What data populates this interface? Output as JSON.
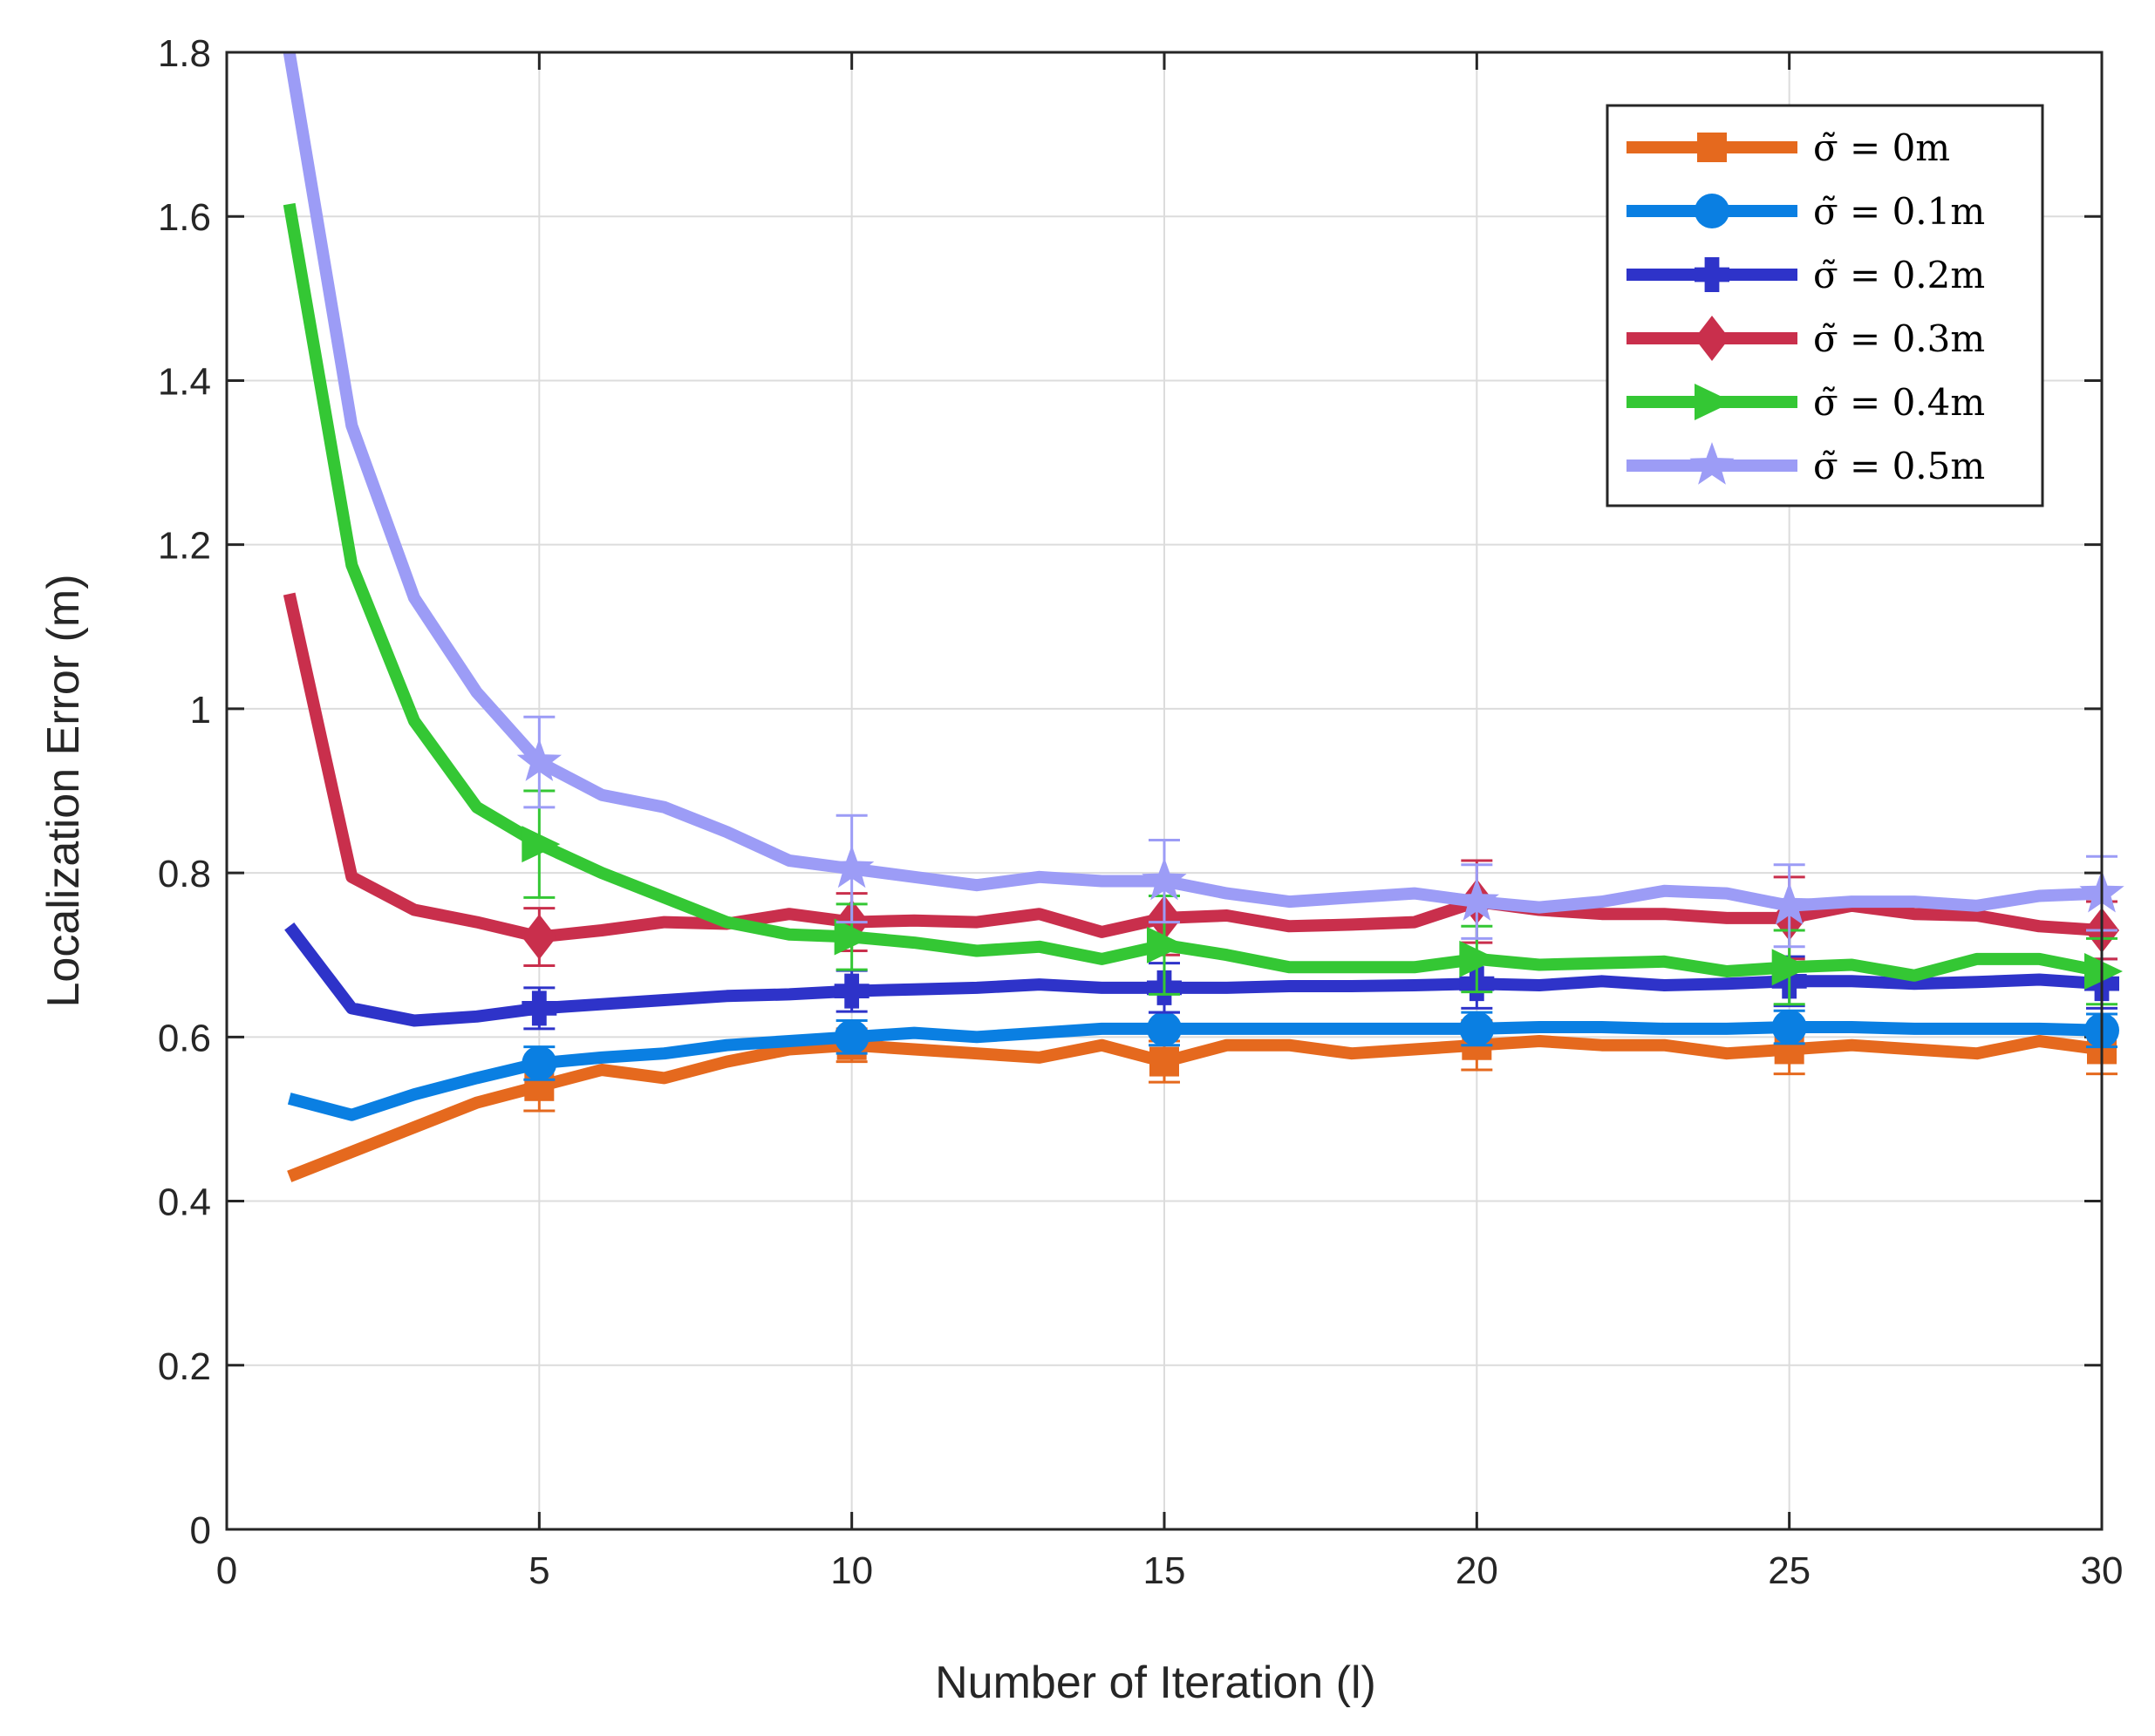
{
  "chart_data": {
    "type": "line",
    "title": "",
    "xlabel": "Number of Iteration (l)",
    "ylabel": "Localization Error (m)",
    "xlim": [
      0,
      30
    ],
    "ylim": [
      0,
      1.8
    ],
    "xticks": [
      "0",
      "5",
      "10",
      "15",
      "20",
      "25",
      "30"
    ],
    "yticks": [
      "0",
      "0.2",
      "0.4",
      "0.6",
      "0.8",
      "1",
      "1.2",
      "1.4",
      "1.6",
      "1.8"
    ],
    "grid": true,
    "legend_position": "top-right",
    "marker_iterations": [
      5,
      10,
      15,
      20,
      25,
      30
    ],
    "x": [
      1,
      2,
      3,
      4,
      5,
      6,
      7,
      8,
      9,
      10,
      11,
      12,
      13,
      14,
      15,
      16,
      17,
      18,
      19,
      20,
      21,
      22,
      23,
      24,
      25,
      26,
      27,
      28,
      29,
      30
    ],
    "series": [
      {
        "name": "σ̃ = 0m",
        "color": "#e5691e",
        "marker": "square",
        "values": [
          0.43,
          0.46,
          0.49,
          0.52,
          0.54,
          0.56,
          0.55,
          0.57,
          0.585,
          0.59,
          0.585,
          0.58,
          0.575,
          0.59,
          0.57,
          0.59,
          0.59,
          0.58,
          0.585,
          0.59,
          0.595,
          0.59,
          0.59,
          0.58,
          0.585,
          0.59,
          0.585,
          0.58,
          0.595,
          0.585
        ],
        "errors": [
          0.03,
          0.02,
          0.025,
          0.03,
          0.03,
          0.03
        ]
      },
      {
        "name": "σ̃ = 0.1m",
        "color": "#0a7fe2",
        "marker": "circle",
        "values": [
          0.525,
          0.505,
          0.53,
          0.55,
          0.568,
          0.575,
          0.58,
          0.59,
          0.595,
          0.6,
          0.605,
          0.6,
          0.605,
          0.61,
          0.61,
          0.61,
          0.61,
          0.61,
          0.61,
          0.61,
          0.612,
          0.612,
          0.61,
          0.61,
          0.612,
          0.612,
          0.61,
          0.61,
          0.61,
          0.608
        ],
        "errors": [
          0.02,
          0.02,
          0.02,
          0.02,
          0.02,
          0.02
        ]
      },
      {
        "name": "σ̃ = 0.2m",
        "color": "#2e33c9",
        "marker": "plus",
        "values": [
          0.735,
          0.635,
          0.62,
          0.625,
          0.635,
          0.64,
          0.645,
          0.65,
          0.652,
          0.656,
          0.658,
          0.66,
          0.664,
          0.66,
          0.66,
          0.66,
          0.662,
          0.662,
          0.663,
          0.665,
          0.663,
          0.668,
          0.663,
          0.665,
          0.668,
          0.668,
          0.665,
          0.667,
          0.67,
          0.665
        ],
        "errors": [
          0.025,
          0.025,
          0.03,
          0.03,
          0.03,
          0.03
        ]
      },
      {
        "name": "σ̃ = 0.3m",
        "color": "#c92f4c",
        "marker": "diamond",
        "values": [
          1.14,
          0.795,
          0.755,
          0.74,
          0.722,
          0.73,
          0.74,
          0.738,
          0.75,
          0.74,
          0.742,
          0.74,
          0.75,
          0.728,
          0.745,
          0.748,
          0.735,
          0.737,
          0.74,
          0.765,
          0.755,
          0.75,
          0.75,
          0.745,
          0.745,
          0.76,
          0.75,
          0.748,
          0.735,
          0.73
        ],
        "errors": [
          0.035,
          0.035,
          0.045,
          0.05,
          0.05,
          0.035
        ]
      },
      {
        "name": "σ̃ = 0.4m",
        "color": "#34c734",
        "marker": "triangle-right",
        "values": [
          1.615,
          1.175,
          0.985,
          0.88,
          0.835,
          0.8,
          0.77,
          0.74,
          0.725,
          0.722,
          0.715,
          0.705,
          0.71,
          0.695,
          0.712,
          0.7,
          0.685,
          0.685,
          0.685,
          0.695,
          0.688,
          0.69,
          0.692,
          0.68,
          0.685,
          0.688,
          0.675,
          0.695,
          0.695,
          0.68
        ],
        "errors": [
          0.065,
          0.04,
          0.06,
          0.04,
          0.045,
          0.04
        ]
      },
      {
        "name": "σ̃ = 0.5m",
        "color": "#9c9cf6",
        "marker": "star",
        "values": [
          1.8,
          1.345,
          1.135,
          1.02,
          0.935,
          0.895,
          0.88,
          0.85,
          0.815,
          0.805,
          0.795,
          0.785,
          0.795,
          0.79,
          0.79,
          0.775,
          0.765,
          0.77,
          0.775,
          0.765,
          0.758,
          0.765,
          0.778,
          0.775,
          0.76,
          0.765,
          0.765,
          0.76,
          0.772,
          0.775
        ],
        "errors": [
          0.055,
          0.065,
          0.05,
          0.045,
          0.05,
          0.045
        ]
      }
    ]
  }
}
